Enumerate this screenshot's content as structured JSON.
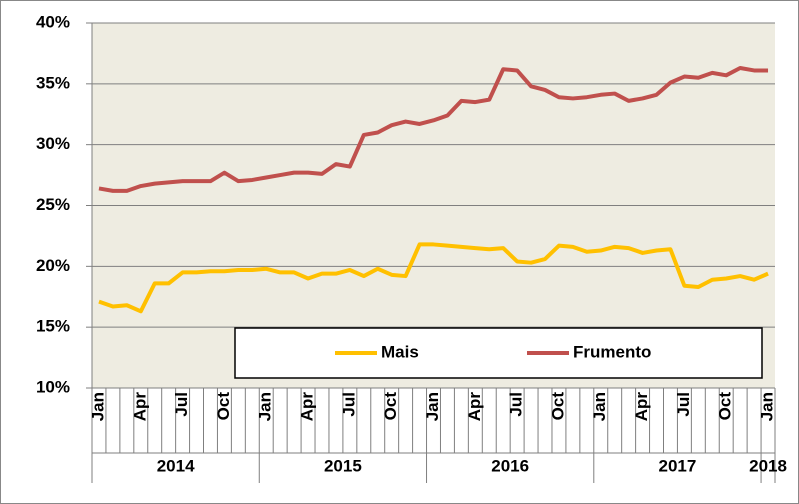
{
  "chart_data": {
    "type": "line",
    "categories": [
      "Jan",
      null,
      null,
      "Apr",
      null,
      null,
      "Jul",
      null,
      null,
      "Oct",
      null,
      null,
      "Jan",
      null,
      null,
      "Apr",
      null,
      null,
      "Jul",
      null,
      null,
      "Oct",
      null,
      null,
      "Jan",
      null,
      null,
      "Apr",
      null,
      null,
      "Jul",
      null,
      null,
      "Oct",
      null,
      null,
      "Jan",
      null,
      null,
      "Apr",
      null,
      null,
      "Jul",
      null,
      null,
      "Oct",
      null,
      null,
      "Jan"
    ],
    "years": [
      "2014",
      "2015",
      "2016",
      "2017",
      "2018"
    ],
    "series": [
      {
        "name": "Mais",
        "color": "#FFC000",
        "values": [
          17.1,
          16.7,
          16.8,
          16.3,
          18.6,
          18.6,
          19.5,
          19.5,
          19.6,
          19.6,
          19.7,
          19.7,
          19.8,
          19.5,
          19.5,
          19.0,
          19.4,
          19.4,
          19.7,
          19.2,
          19.8,
          19.3,
          19.2,
          21.8,
          21.8,
          21.7,
          21.6,
          21.5,
          21.4,
          21.5,
          20.4,
          20.3,
          20.6,
          21.7,
          21.6,
          21.2,
          21.3,
          21.6,
          21.5,
          21.1,
          21.3,
          21.4,
          18.4,
          18.3,
          18.9,
          19.0,
          19.2,
          18.9,
          19.4
        ]
      },
      {
        "name": "Frumento",
        "color": "#C0504D",
        "values": [
          26.4,
          26.2,
          26.2,
          26.6,
          26.8,
          26.9,
          27.0,
          27.0,
          27.0,
          27.7,
          27.0,
          27.1,
          27.3,
          27.5,
          27.7,
          27.7,
          27.6,
          28.4,
          28.2,
          30.8,
          31.0,
          31.6,
          31.9,
          31.7,
          32.0,
          32.4,
          33.6,
          33.5,
          33.7,
          36.2,
          36.1,
          34.8,
          34.5,
          33.9,
          33.8,
          33.9,
          34.1,
          34.2,
          33.6,
          33.8,
          34.1,
          35.1,
          35.6,
          35.5,
          35.9,
          35.7,
          36.3,
          36.1,
          36.1
        ]
      }
    ],
    "ylim": [
      10,
      40
    ],
    "yticks": [
      {
        "value": 10,
        "label": "10%"
      },
      {
        "value": 15,
        "label": "15%"
      },
      {
        "value": 20,
        "label": "20%"
      },
      {
        "value": 25,
        "label": "25%"
      },
      {
        "value": 30,
        "label": "30%"
      },
      {
        "value": 35,
        "label": "35%"
      },
      {
        "value": 40,
        "label": "40%"
      }
    ],
    "grid": true
  }
}
